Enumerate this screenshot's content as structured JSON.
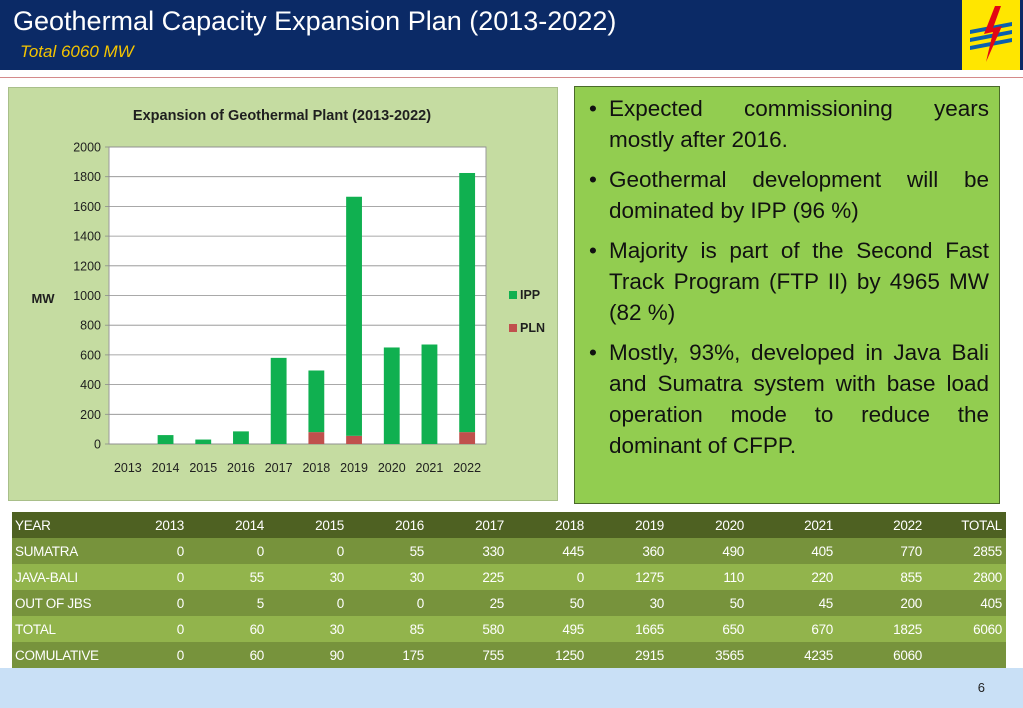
{
  "header": {
    "title": "Geothermal Capacity Expansion Plan (2013-2022)",
    "subtitle": "Total 6060 MW"
  },
  "colors": {
    "header_bg": "#0b2a66",
    "subtitle": "#f4c400",
    "ipp": "#10b050",
    "pln": "#c0504d",
    "bullet_bg": "#92cd50"
  },
  "logo": {
    "icon": "pln-lightning-logo-icon"
  },
  "chart_data": {
    "type": "bar",
    "stacked": true,
    "title": "Expansion of Geothermal Plant (2013-2022)",
    "ylabel": "MW",
    "xlabel": "",
    "ylim": [
      0,
      2000
    ],
    "yticks": [
      "0",
      "200",
      "400",
      "600",
      "800",
      "1000",
      "1200",
      "1400",
      "1600",
      "1800",
      "2000"
    ],
    "grid": true,
    "legend": "right",
    "categories": [
      "2013",
      "2014",
      "2015",
      "2016",
      "2017",
      "2018",
      "2019",
      "2020",
      "2021",
      "2022"
    ],
    "series": [
      {
        "name": "IPP",
        "color": "#10b050",
        "values": [
          0,
          60,
          30,
          85,
          580,
          415,
          1610,
          650,
          670,
          1745
        ]
      },
      {
        "name": "PLN",
        "color": "#c0504d",
        "values": [
          0,
          0,
          0,
          0,
          0,
          80,
          55,
          0,
          0,
          80
        ]
      }
    ]
  },
  "bullets": [
    "Expected commissioning years mostly after 2016.",
    "Geothermal development will be dominated by IPP (96 %)",
    "Majority is part of the Second Fast Track Program (FTP II) by 4965 MW (82 %)",
    "Mostly, 93%, developed in Java Bali and Sumatra system with base load operation mode to reduce the dominant of CFPP."
  ],
  "table": {
    "header": [
      "YEAR",
      "2013",
      "2014",
      "2015",
      "2016",
      "2017",
      "2018",
      "2019",
      "2020",
      "2021",
      "2022",
      "TOTAL"
    ],
    "rows": [
      [
        "SUMATRA",
        "0",
        "0",
        "0",
        "55",
        "330",
        "445",
        "360",
        "490",
        "405",
        "770",
        "2855"
      ],
      [
        "JAVA-BALI",
        "0",
        "55",
        "30",
        "30",
        "225",
        "0",
        "1275",
        "110",
        "220",
        "855",
        "2800"
      ],
      [
        "OUT OF JBS",
        "0",
        "5",
        "0",
        "0",
        "25",
        "50",
        "30",
        "50",
        "45",
        "200",
        "405"
      ],
      [
        "TOTAL",
        "0",
        "60",
        "30",
        "85",
        "580",
        "495",
        "1665",
        "650",
        "670",
        "1825",
        "6060"
      ],
      [
        "COMULATIVE",
        "0",
        "60",
        "90",
        "175",
        "755",
        "1250",
        "2915",
        "3565",
        "4235",
        "6060",
        ""
      ]
    ]
  },
  "footer": {
    "page_number": "6"
  }
}
